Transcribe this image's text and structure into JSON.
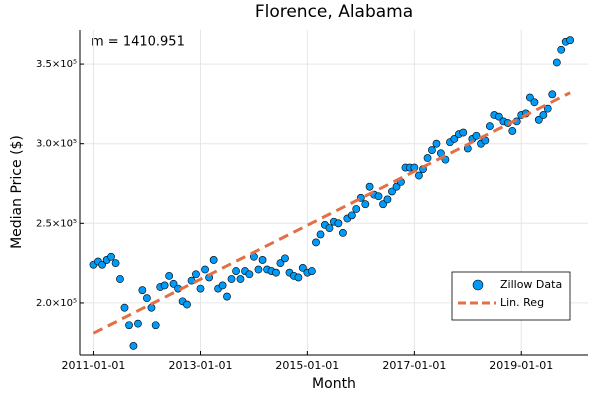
{
  "chart_data": {
    "type": "scatter",
    "title": "Florence, Alabama",
    "xlabel": "Month",
    "ylabel": "Median Price ($)",
    "annotation": "m = 1410.951",
    "xlim": [
      "2010-10-01",
      "2020-04-01"
    ],
    "xticks": [
      "2011-01-01",
      "2013-01-01",
      "2015-01-01",
      "2017-01-01",
      "2019-01-01"
    ],
    "ylim": [
      167300,
      371400
    ],
    "yticks": [
      {
        "value": 200000,
        "label": "2.0×10⁵"
      },
      {
        "value": 250000,
        "label": "2.5×10⁵"
      },
      {
        "value": 300000,
        "label": "3.0×10⁵"
      },
      {
        "value": 350000,
        "label": "3.5×10⁵"
      }
    ],
    "grid": true,
    "legend": "bottom-right",
    "series": [
      {
        "name": "Zillow Data",
        "color": "#009af9",
        "type": "scatter",
        "x": [
          "2011-01-01",
          "2011-02-01",
          "2011-03-01",
          "2011-04-01",
          "2011-05-01",
          "2011-06-01",
          "2011-07-01",
          "2011-08-01",
          "2011-09-01",
          "2011-10-01",
          "2011-11-01",
          "2011-12-01",
          "2012-01-01",
          "2012-02-01",
          "2012-03-01",
          "2012-04-01",
          "2012-05-01",
          "2012-06-01",
          "2012-07-01",
          "2012-08-01",
          "2012-09-01",
          "2012-10-01",
          "2012-11-01",
          "2012-12-01",
          "2013-01-01",
          "2013-02-01",
          "2013-03-01",
          "2013-04-01",
          "2013-05-01",
          "2013-06-01",
          "2013-07-01",
          "2013-08-01",
          "2013-09-01",
          "2013-10-01",
          "2013-11-01",
          "2013-12-01",
          "2014-01-01",
          "2014-02-01",
          "2014-03-01",
          "2014-04-01",
          "2014-05-01",
          "2014-06-01",
          "2014-07-01",
          "2014-08-01",
          "2014-09-01",
          "2014-10-01",
          "2014-11-01",
          "2014-12-01",
          "2015-01-01",
          "2015-02-01",
          "2015-03-01",
          "2015-04-01",
          "2015-05-01",
          "2015-06-01",
          "2015-07-01",
          "2015-08-01",
          "2015-09-01",
          "2015-10-01",
          "2015-11-01",
          "2015-12-01",
          "2016-01-01",
          "2016-02-01",
          "2016-03-01",
          "2016-04-01",
          "2016-05-01",
          "2016-06-01",
          "2016-07-01",
          "2016-08-01",
          "2016-09-01",
          "2016-10-01",
          "2016-11-01",
          "2016-12-01",
          "2017-01-01",
          "2017-02-01",
          "2017-03-01",
          "2017-04-01",
          "2017-05-01",
          "2017-06-01",
          "2017-07-01",
          "2017-08-01",
          "2017-09-01",
          "2017-10-01",
          "2017-11-01",
          "2017-12-01",
          "2018-01-01",
          "2018-02-01",
          "2018-03-01",
          "2018-04-01",
          "2018-05-01",
          "2018-06-01",
          "2018-07-01",
          "2018-08-01",
          "2018-09-01",
          "2018-10-01",
          "2018-11-01",
          "2018-12-01",
          "2019-01-01",
          "2019-02-01",
          "2019-03-01",
          "2019-04-01",
          "2019-05-01",
          "2019-06-01",
          "2019-07-01",
          "2019-08-01",
          "2019-09-01",
          "2019-10-01",
          "2019-11-01",
          "2019-12-01"
        ],
        "values": [
          224000,
          226000,
          224000,
          227000,
          229000,
          225000,
          215000,
          197000,
          186000,
          173000,
          187000,
          208000,
          203000,
          197000,
          186000,
          210000,
          211000,
          217000,
          212000,
          209000,
          201000,
          199000,
          214000,
          218000,
          209000,
          221000,
          216000,
          227000,
          209000,
          211000,
          204000,
          215000,
          220000,
          215000,
          220000,
          218000,
          229000,
          221000,
          227000,
          221000,
          220000,
          219000,
          225000,
          228000,
          219000,
          217000,
          216000,
          222000,
          219000,
          220000,
          238000,
          243000,
          249000,
          247000,
          251000,
          250000,
          244000,
          253000,
          255000,
          259000,
          266000,
          262000,
          273000,
          268000,
          267000,
          262000,
          265000,
          270000,
          273000,
          276000,
          285000,
          285000,
          285000,
          280000,
          284000,
          291000,
          296000,
          300000,
          294000,
          290000,
          301000,
          303000,
          306000,
          307000,
          297000,
          303000,
          305000,
          300000,
          302000,
          311000,
          318000,
          317000,
          314000,
          313000,
          308000,
          314000,
          318000,
          319000,
          329000,
          326000,
          315000,
          318000,
          322000,
          331000,
          351000,
          359000,
          364000,
          365000
        ]
      },
      {
        "name": "Lin. Reg",
        "color": "#e26f46",
        "type": "line",
        "x": [
          "2011-01-01",
          "2019-12-01"
        ],
        "values": [
          181000,
          332000
        ]
      }
    ]
  }
}
